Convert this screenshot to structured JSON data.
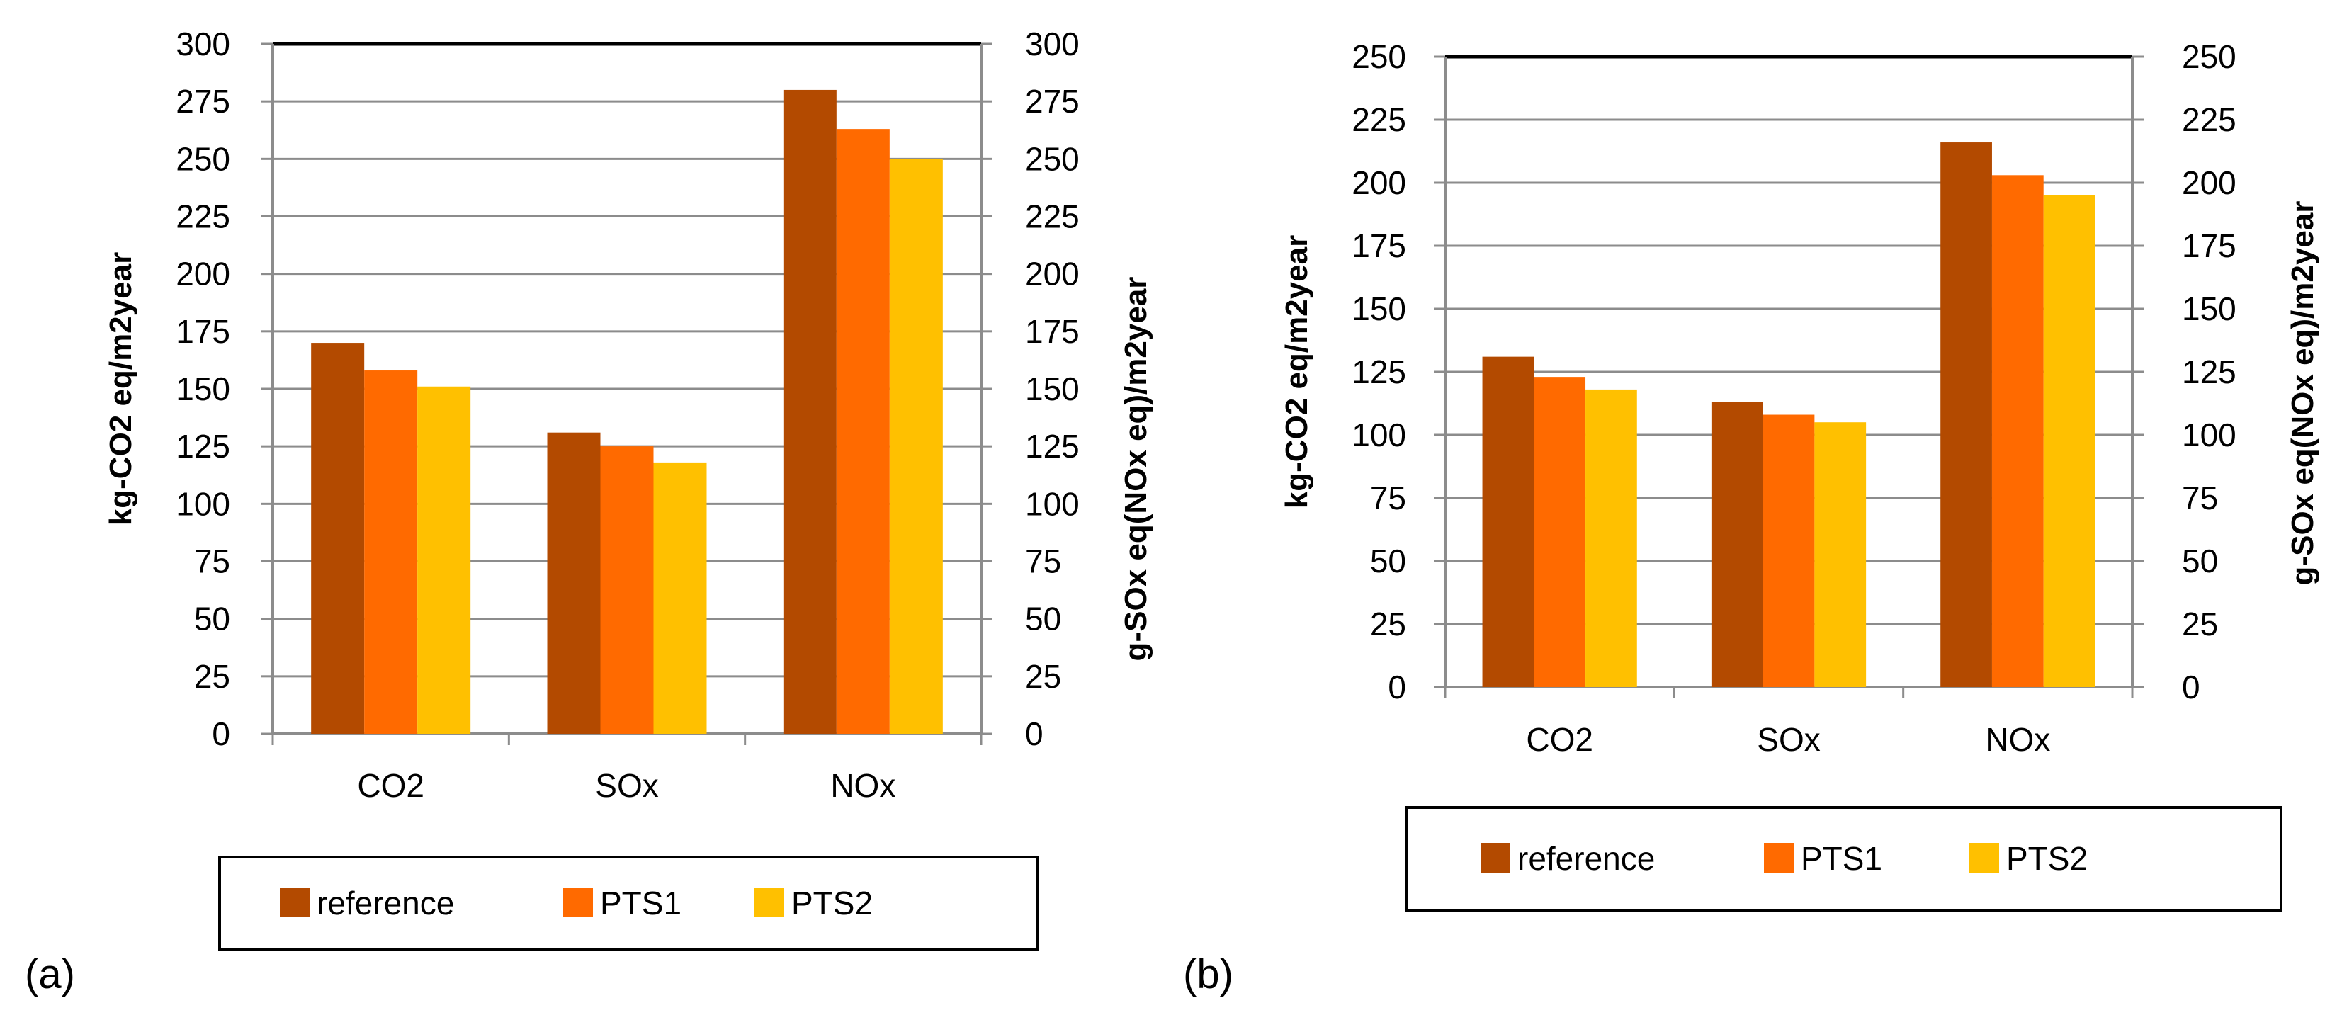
{
  "chart_data": [
    {
      "panel_label": "(a)",
      "type": "bar",
      "categories": [
        "CO2",
        "SOx",
        "NOx"
      ],
      "series": [
        {
          "name": "reference",
          "color": "#B34A00",
          "values": [
            170,
            131,
            280
          ]
        },
        {
          "name": "PTS1",
          "color": "#FF6A00",
          "values": [
            158,
            125,
            263
          ]
        },
        {
          "name": "PTS2",
          "color": "#FFC000",
          "values": [
            151,
            118,
            250
          ]
        }
      ],
      "ylabel_left": "kg-CO2 eq/m2year",
      "ylabel_right": "g-SOx eq(NOx eq)/m2year",
      "ylim": [
        0,
        300
      ],
      "yticks": [
        0,
        25,
        50,
        75,
        100,
        125,
        150,
        175,
        200,
        225,
        250,
        275,
        300
      ],
      "grid": true,
      "legend_position": "bottom"
    },
    {
      "panel_label": "(b)",
      "type": "bar",
      "categories": [
        "CO2",
        "SOx",
        "NOx"
      ],
      "series": [
        {
          "name": "reference",
          "color": "#B34A00",
          "values": [
            131,
            113,
            216
          ]
        },
        {
          "name": "PTS1",
          "color": "#FF6A00",
          "values": [
            123,
            108,
            203
          ]
        },
        {
          "name": "PTS2",
          "color": "#FFC000",
          "values": [
            118,
            105,
            195
          ]
        }
      ],
      "ylabel_left": "kg-CO2 eq/m2year",
      "ylabel_right": "g-SOx eq(NOx eq)/m2year",
      "ylim": [
        0,
        250
      ],
      "yticks": [
        0,
        25,
        50,
        75,
        100,
        125,
        150,
        175,
        200,
        225,
        250
      ],
      "grid": true,
      "legend_position": "bottom"
    }
  ]
}
